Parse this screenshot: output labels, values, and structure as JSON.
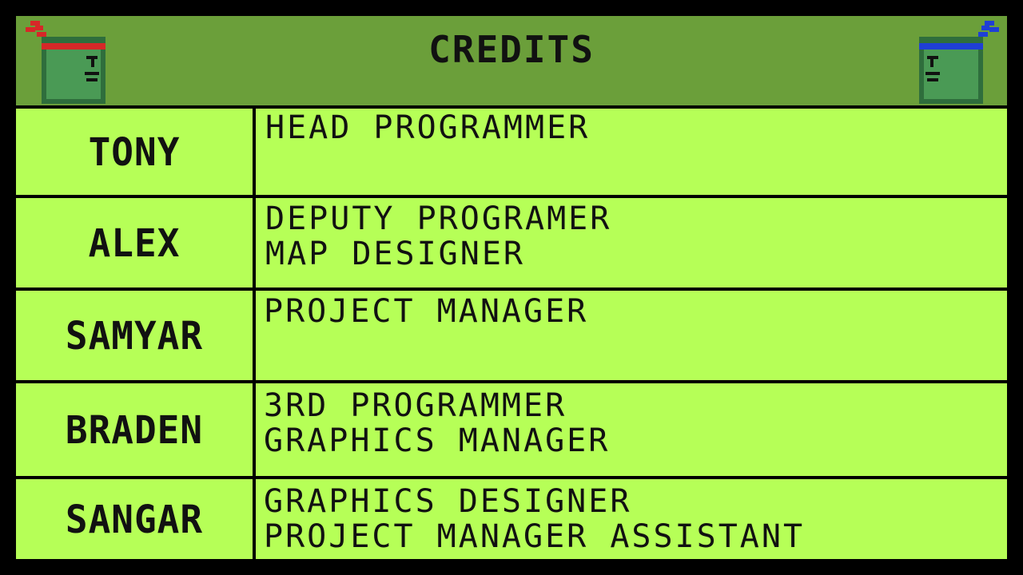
{
  "header": {
    "title": "CREDITS",
    "left_sprite_icon": "red-headband-block-icon",
    "right_sprite_icon": "blue-headband-block-icon"
  },
  "colors": {
    "header_bg": "#6b9f3a",
    "cell_bg": "#b6ff57",
    "border": "#000000",
    "text": "#111111",
    "headband_left": "#d62828",
    "headband_right": "#1f3fd6",
    "sprite_green": "#4a9a55"
  },
  "credits": [
    {
      "name": "TONY",
      "roles": [
        "HEAD PROGRAMMER"
      ]
    },
    {
      "name": "ALEX",
      "roles": [
        "DEPUTY PROGRAMER",
        "MAP DESIGNER"
      ]
    },
    {
      "name": "SAMYAR",
      "roles": [
        "PROJECT MANAGER"
      ]
    },
    {
      "name": "BRADEN",
      "roles": [
        "3RD PROGRAMMER",
        "GRAPHICS MANAGER"
      ]
    },
    {
      "name": "SANGAR",
      "roles": [
        "GRAPHICS DESIGNER",
        "PROJECT MANAGER ASSISTANT"
      ]
    }
  ]
}
